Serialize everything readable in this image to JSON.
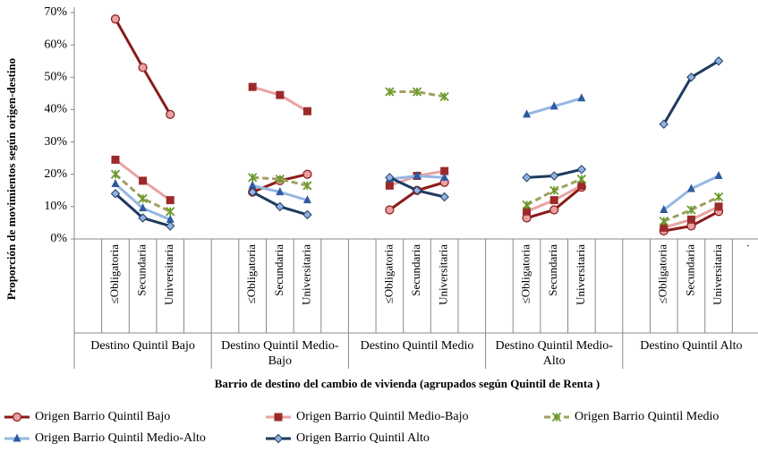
{
  "chart_data": {
    "type": "line",
    "y_label": "Proporción de movimientos según origen-destino",
    "x_label": "Barrio de destino del cambio de vivienda (agrupados según Quintil de Renta )",
    "categories": [
      null,
      "≤Obligatoria",
      "Secundaria",
      "Universitaria",
      null,
      null,
      "≤Obligatoria",
      "Secundaria",
      "Universitaria",
      null,
      null,
      "≤Obligatoria",
      "Secundaria",
      "Universitaria",
      null,
      null,
      "≤Obligatoria",
      "Secundaria",
      "Universitaria",
      null,
      null,
      "≤Obligatoria",
      "Secundaria",
      "Universitaria",
      "."
    ],
    "group_labels": [
      "Destino Quintil Bajo",
      "Destino Quintil Medio-Bajo",
      "Destino Quintil Medio",
      "Destino Quintil Medio-Alto",
      "Destino Quintil Alto"
    ],
    "ylim": [
      0,
      70
    ],
    "yticks": [
      {
        "value": 0,
        "label": "0%"
      },
      {
        "value": 10,
        "label": "10%"
      },
      {
        "value": 20,
        "label": "20%"
      },
      {
        "value": 30,
        "label": "30%"
      },
      {
        "value": 40,
        "label": "40%"
      },
      {
        "value": 50,
        "label": "50%"
      },
      {
        "value": 60,
        "label": "60%"
      },
      {
        "value": 70,
        "label": "70%"
      }
    ],
    "grid": false,
    "legend": "bottom",
    "series": [
      {
        "name": "Origen Barrio Quintil Bajo",
        "color": "#8b1a1a",
        "marker": "circle",
        "marker_color": "#e8a0a0",
        "dashed": false,
        "values": [
          null,
          68,
          53,
          38.5,
          null,
          null,
          14.5,
          18,
          20,
          null,
          null,
          9,
          15,
          17.5,
          null,
          null,
          6.5,
          9,
          16,
          null,
          null,
          2.5,
          4,
          8.5,
          null
        ]
      },
      {
        "name": "Origen Barrio Quintil Medio-Bajo",
        "color": "#e8a3a3",
        "marker": "square",
        "marker_color": "#9b2a2a",
        "dashed": false,
        "values": [
          null,
          24.5,
          18,
          12,
          null,
          null,
          47,
          44.5,
          39.5,
          null,
          null,
          16.5,
          19.5,
          21,
          null,
          null,
          8.5,
          12,
          16.5,
          null,
          null,
          3.5,
          6,
          10,
          null
        ]
      },
      {
        "name": "Origen Barrio Quintil Medio",
        "color": "#a0a060",
        "marker": "star",
        "marker_color": "#6a9a2a",
        "dashed": true,
        "values": [
          null,
          20,
          12.5,
          8.5,
          null,
          null,
          19,
          18.5,
          16.5,
          null,
          null,
          45.5,
          45.5,
          44,
          null,
          null,
          10.5,
          15,
          18.5,
          null,
          null,
          5.5,
          9,
          13,
          null
        ]
      },
      {
        "name": "Origen Barrio Quintil Medio-Alto",
        "color": "#95b8e3",
        "marker": "triangle",
        "marker_color": "#2e5a9e",
        "dashed": false,
        "values": [
          null,
          17,
          9.5,
          6,
          null,
          null,
          16.5,
          14.5,
          12,
          null,
          null,
          18.5,
          19.5,
          19,
          null,
          null,
          38.5,
          41,
          43.5,
          null,
          null,
          9,
          15.5,
          19.5,
          null
        ]
      },
      {
        "name": "Origen Barrio Quintil Alto",
        "color": "#1f3a5f",
        "marker": "diamond",
        "marker_color": "#8fb4e3",
        "dashed": false,
        "values": [
          null,
          14,
          6.5,
          4,
          null,
          null,
          14.5,
          10,
          7.5,
          null,
          null,
          19,
          15,
          13,
          null,
          null,
          19,
          19.5,
          21.5,
          null,
          null,
          35.5,
          50,
          55,
          null
        ]
      }
    ]
  }
}
